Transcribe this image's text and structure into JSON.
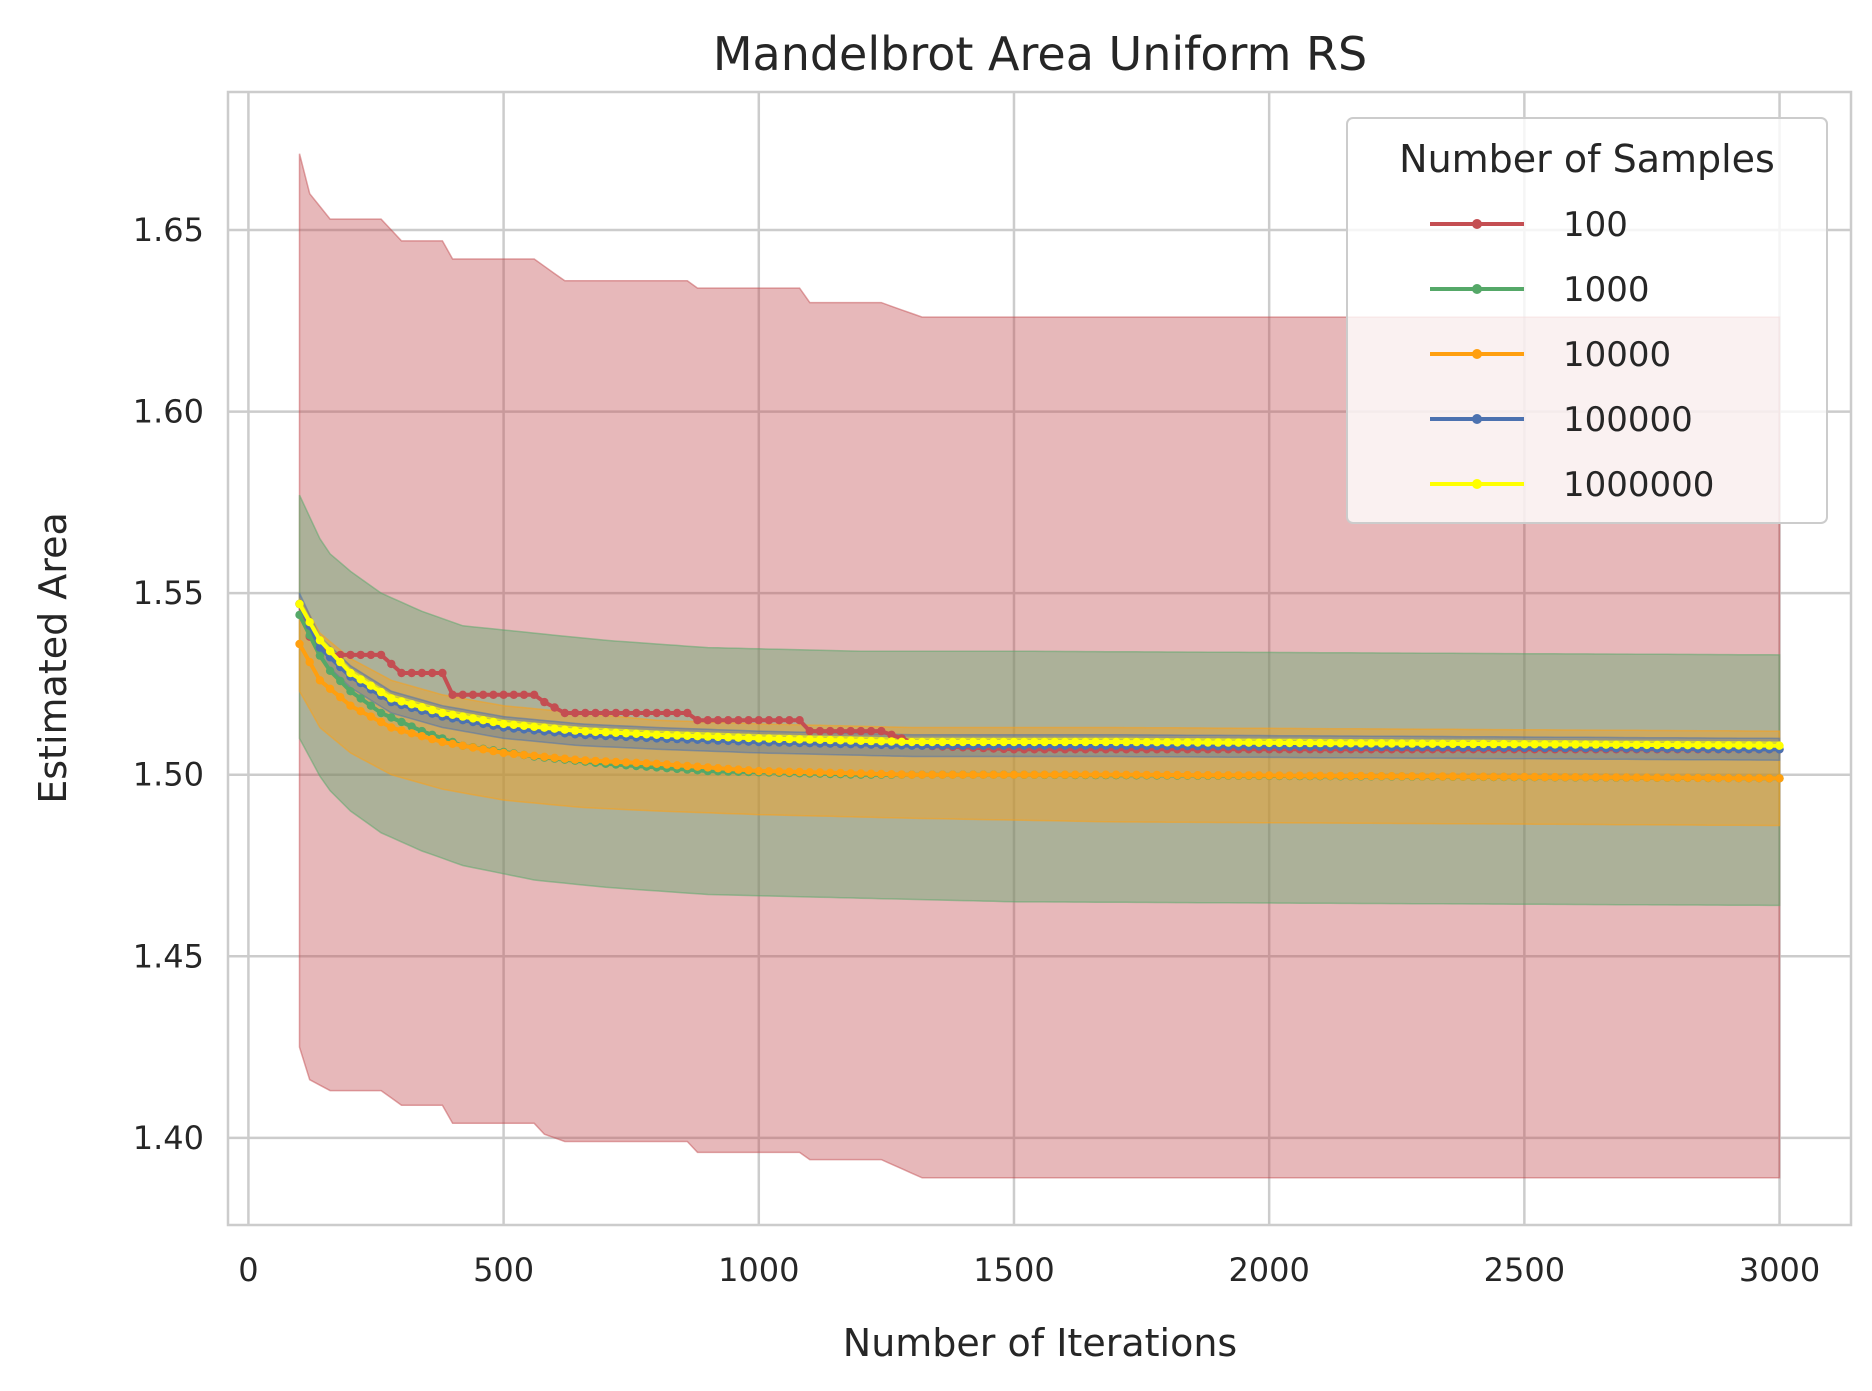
{
  "chart_data": {
    "type": "line",
    "title": "Mandelbrot Area Uniform RS",
    "xlabel": "Number of Iterations",
    "ylabel": "Estimated Area",
    "xlim": [
      -40,
      3140
    ],
    "ylim": [
      1.376,
      1.688
    ],
    "xticks": [
      0,
      500,
      1000,
      1500,
      2000,
      2500,
      3000
    ],
    "xtick_labels": [
      "0",
      "500",
      "1000",
      "1500",
      "2000",
      "2500",
      "3000"
    ],
    "yticks": [
      1.4,
      1.45,
      1.5,
      1.55,
      1.6,
      1.65
    ],
    "ytick_labels": [
      "1.40",
      "1.45",
      "1.50",
      "1.55",
      "1.60",
      "1.65"
    ],
    "grid": true,
    "x_start": 100,
    "x_end": 3000,
    "x_step": 20,
    "legend": {
      "title": "Number of Samples",
      "position": "top-right"
    },
    "series": [
      {
        "name": "100",
        "color": "#c44e52",
        "mean": [
          [
            100,
            1.547
          ],
          [
            120,
            1.538
          ],
          [
            160,
            1.533
          ],
          [
            260,
            1.533
          ],
          [
            300,
            1.528
          ],
          [
            380,
            1.528
          ],
          [
            400,
            1.522
          ],
          [
            560,
            1.522
          ],
          [
            580,
            1.52
          ],
          [
            620,
            1.517
          ],
          [
            860,
            1.517
          ],
          [
            880,
            1.515
          ],
          [
            1080,
            1.515
          ],
          [
            1100,
            1.512
          ],
          [
            1240,
            1.512
          ],
          [
            1320,
            1.508
          ],
          [
            1500,
            1.507
          ],
          [
            3000,
            1.507
          ]
        ],
        "upper": [
          [
            100,
            1.671
          ],
          [
            120,
            1.66
          ],
          [
            160,
            1.653
          ],
          [
            260,
            1.653
          ],
          [
            300,
            1.647
          ],
          [
            380,
            1.647
          ],
          [
            400,
            1.642
          ],
          [
            560,
            1.642
          ],
          [
            580,
            1.64
          ],
          [
            620,
            1.636
          ],
          [
            860,
            1.636
          ],
          [
            880,
            1.634
          ],
          [
            1080,
            1.634
          ],
          [
            1100,
            1.63
          ],
          [
            1240,
            1.63
          ],
          [
            1320,
            1.626
          ],
          [
            3000,
            1.626
          ]
        ],
        "lower": [
          [
            100,
            1.425
          ],
          [
            120,
            1.416
          ],
          [
            160,
            1.413
          ],
          [
            260,
            1.413
          ],
          [
            300,
            1.409
          ],
          [
            380,
            1.409
          ],
          [
            400,
            1.404
          ],
          [
            560,
            1.404
          ],
          [
            580,
            1.401
          ],
          [
            620,
            1.399
          ],
          [
            860,
            1.399
          ],
          [
            880,
            1.396
          ],
          [
            1080,
            1.396
          ],
          [
            1100,
            1.394
          ],
          [
            1240,
            1.394
          ],
          [
            1320,
            1.389
          ],
          [
            3000,
            1.389
          ]
        ]
      },
      {
        "name": "1000",
        "color": "#55a868",
        "mean": [
          [
            100,
            1.544
          ],
          [
            150,
            1.53
          ],
          [
            200,
            1.523
          ],
          [
            260,
            1.517
          ],
          [
            340,
            1.512
          ],
          [
            420,
            1.508
          ],
          [
            560,
            1.505
          ],
          [
            700,
            1.503
          ],
          [
            900,
            1.501
          ],
          [
            1200,
            1.5
          ],
          [
            1500,
            1.5
          ],
          [
            3000,
            1.499
          ]
        ],
        "upper": [
          [
            100,
            1.577
          ],
          [
            150,
            1.562
          ],
          [
            200,
            1.556
          ],
          [
            260,
            1.55
          ],
          [
            340,
            1.545
          ],
          [
            420,
            1.541
          ],
          [
            560,
            1.539
          ],
          [
            700,
            1.537
          ],
          [
            900,
            1.535
          ],
          [
            1200,
            1.534
          ],
          [
            1500,
            1.534
          ],
          [
            3000,
            1.533
          ]
        ],
        "lower": [
          [
            100,
            1.51
          ],
          [
            150,
            1.497
          ],
          [
            200,
            1.49
          ],
          [
            260,
            1.484
          ],
          [
            340,
            1.479
          ],
          [
            420,
            1.475
          ],
          [
            560,
            1.471
          ],
          [
            700,
            1.469
          ],
          [
            900,
            1.467
          ],
          [
            1200,
            1.466
          ],
          [
            1500,
            1.465
          ],
          [
            3000,
            1.464
          ]
        ]
      },
      {
        "name": "10000",
        "color": "#ff9f0f",
        "mean": [
          [
            100,
            1.536
          ],
          [
            140,
            1.526
          ],
          [
            200,
            1.519
          ],
          [
            280,
            1.513
          ],
          [
            380,
            1.509
          ],
          [
            500,
            1.506
          ],
          [
            650,
            1.504
          ],
          [
            800,
            1.503
          ],
          [
            1000,
            1.501
          ],
          [
            1300,
            1.5
          ],
          [
            1700,
            1.5
          ],
          [
            3000,
            1.499
          ]
        ],
        "upper": [
          [
            100,
            1.549
          ],
          [
            140,
            1.539
          ],
          [
            200,
            1.532
          ],
          [
            280,
            1.526
          ],
          [
            380,
            1.522
          ],
          [
            500,
            1.519
          ],
          [
            650,
            1.517
          ],
          [
            800,
            1.515
          ],
          [
            1000,
            1.514
          ],
          [
            1300,
            1.513
          ],
          [
            1700,
            1.513
          ],
          [
            3000,
            1.512
          ]
        ],
        "lower": [
          [
            100,
            1.523
          ],
          [
            140,
            1.513
          ],
          [
            200,
            1.506
          ],
          [
            280,
            1.5
          ],
          [
            380,
            1.496
          ],
          [
            500,
            1.493
          ],
          [
            650,
            1.491
          ],
          [
            800,
            1.49
          ],
          [
            1000,
            1.489
          ],
          [
            1300,
            1.488
          ],
          [
            1700,
            1.487
          ],
          [
            3000,
            1.486
          ]
        ]
      },
      {
        "name": "100000",
        "color": "#4c72b0",
        "mean": [
          [
            100,
            1.547
          ],
          [
            140,
            1.535
          ],
          [
            200,
            1.527
          ],
          [
            280,
            1.52
          ],
          [
            380,
            1.516
          ],
          [
            500,
            1.513
          ],
          [
            650,
            1.511
          ],
          [
            800,
            1.51
          ],
          [
            1000,
            1.509
          ],
          [
            1300,
            1.508
          ],
          [
            1700,
            1.508
          ],
          [
            3000,
            1.507
          ]
        ],
        "upper": [
          [
            100,
            1.55
          ],
          [
            140,
            1.538
          ],
          [
            200,
            1.53
          ],
          [
            280,
            1.523
          ],
          [
            380,
            1.519
          ],
          [
            500,
            1.516
          ],
          [
            650,
            1.514
          ],
          [
            800,
            1.513
          ],
          [
            1000,
            1.512
          ],
          [
            1300,
            1.511
          ],
          [
            1700,
            1.511
          ],
          [
            3000,
            1.51
          ]
        ],
        "lower": [
          [
            100,
            1.544
          ],
          [
            140,
            1.532
          ],
          [
            200,
            1.524
          ],
          [
            280,
            1.517
          ],
          [
            380,
            1.513
          ],
          [
            500,
            1.51
          ],
          [
            650,
            1.508
          ],
          [
            800,
            1.507
          ],
          [
            1000,
            1.506
          ],
          [
            1300,
            1.505
          ],
          [
            1700,
            1.505
          ],
          [
            3000,
            1.504
          ]
        ]
      },
      {
        "name": "1000000",
        "color": "#ffff00",
        "mean": [
          [
            100,
            1.547
          ],
          [
            140,
            1.537
          ],
          [
            200,
            1.528
          ],
          [
            280,
            1.521
          ],
          [
            380,
            1.517
          ],
          [
            500,
            1.514
          ],
          [
            650,
            1.512
          ],
          [
            800,
            1.511
          ],
          [
            1000,
            1.51
          ],
          [
            1300,
            1.509
          ],
          [
            1700,
            1.509
          ],
          [
            3000,
            1.508
          ]
        ],
        "upper": [
          [
            100,
            1.548
          ],
          [
            140,
            1.538
          ],
          [
            200,
            1.529
          ],
          [
            280,
            1.522
          ],
          [
            380,
            1.518
          ],
          [
            500,
            1.515
          ],
          [
            650,
            1.513
          ],
          [
            800,
            1.512
          ],
          [
            1000,
            1.511
          ],
          [
            1300,
            1.51
          ],
          [
            1700,
            1.51
          ],
          [
            3000,
            1.509
          ]
        ],
        "lower": [
          [
            100,
            1.546
          ],
          [
            140,
            1.536
          ],
          [
            200,
            1.527
          ],
          [
            280,
            1.52
          ],
          [
            380,
            1.516
          ],
          [
            500,
            1.513
          ],
          [
            650,
            1.511
          ],
          [
            800,
            1.51
          ],
          [
            1000,
            1.509
          ],
          [
            1300,
            1.508
          ],
          [
            1700,
            1.508
          ],
          [
            3000,
            1.507
          ]
        ]
      }
    ]
  }
}
